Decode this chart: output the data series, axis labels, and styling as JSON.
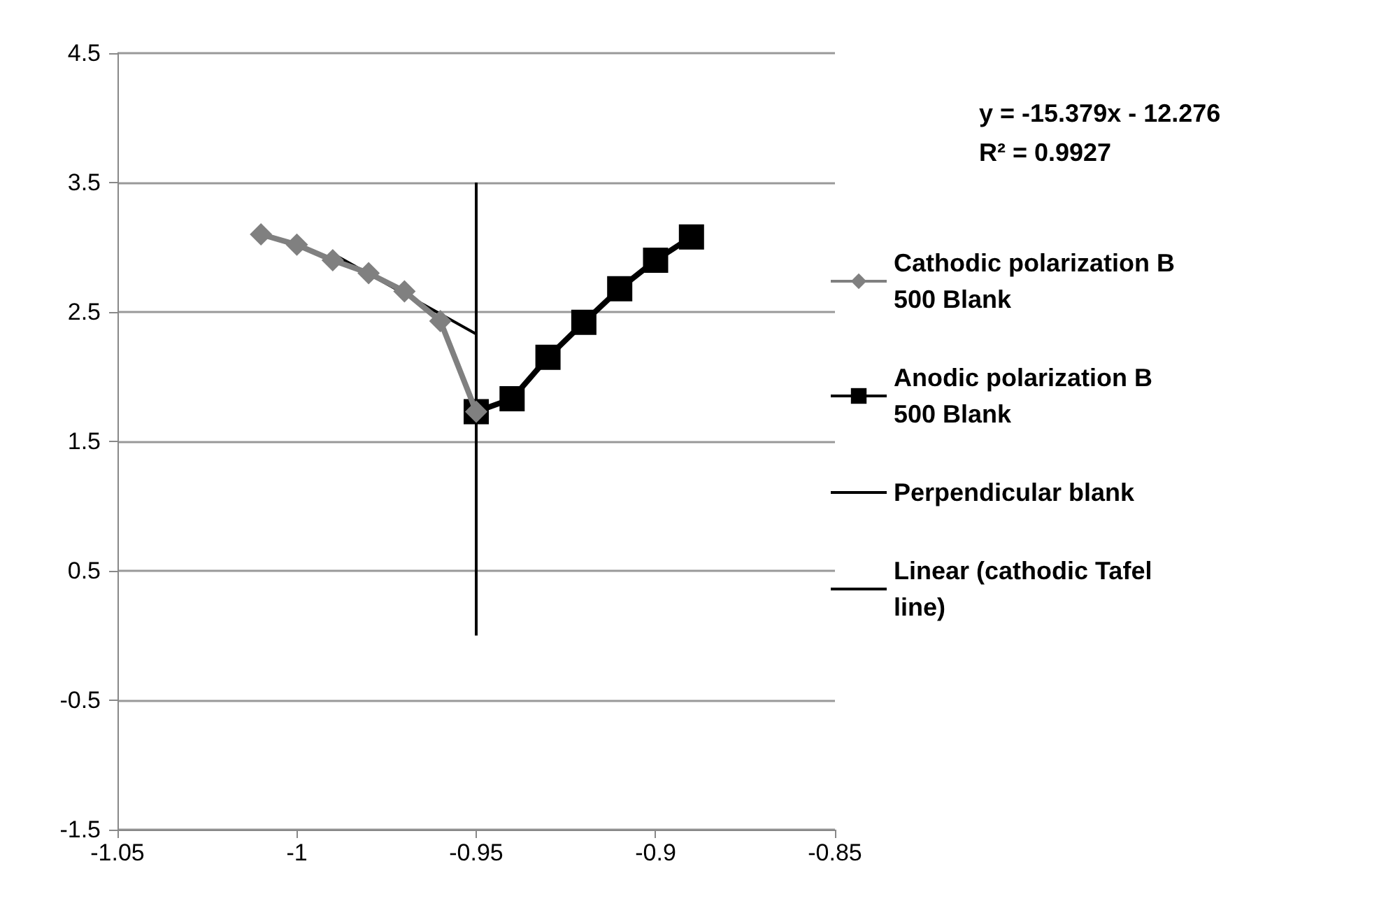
{
  "chart_data": {
    "type": "line",
    "xlim": [
      -1.05,
      -0.85
    ],
    "xticks": [
      -1.05,
      -1,
      -0.95,
      -0.9,
      -0.85
    ],
    "ylim": [
      -1.5,
      4.5
    ],
    "yticks": [
      -1.5,
      -0.5,
      0.5,
      1.5,
      2.5,
      3.5,
      4.5
    ],
    "grid": "y",
    "legend": "right",
    "annotations": [
      "y = -15.379x - 12.276",
      "R² = 0.9927"
    ],
    "series": [
      {
        "name": "Cathodic polarization B 500 Blank",
        "color": "#808080",
        "marker": "diamond",
        "x": [
          -1.01,
          -1.0,
          -0.99,
          -0.98,
          -0.97,
          -0.96,
          -0.95
        ],
        "values": [
          3.1,
          3.02,
          2.9,
          2.8,
          2.66,
          2.43,
          1.73
        ]
      },
      {
        "name": "Anodic polarization B 500 Blank",
        "color": "#000000",
        "marker": "square",
        "x": [
          -0.95,
          -0.94,
          -0.93,
          -0.92,
          -0.91,
          -0.9,
          -0.89
        ],
        "values": [
          1.73,
          1.83,
          2.15,
          2.42,
          2.68,
          2.9,
          3.08
        ]
      },
      {
        "name": "Perpendicular blank",
        "color": "#000000",
        "marker": "none",
        "x": [
          -0.95,
          -0.95
        ],
        "values": [
          0,
          3.5
        ]
      },
      {
        "name": "Linear (cathodic Tafel line)",
        "color": "#000000",
        "marker": "none",
        "x": [
          -0.99,
          -0.95
        ],
        "values": [
          2.95,
          2.33
        ]
      }
    ]
  }
}
